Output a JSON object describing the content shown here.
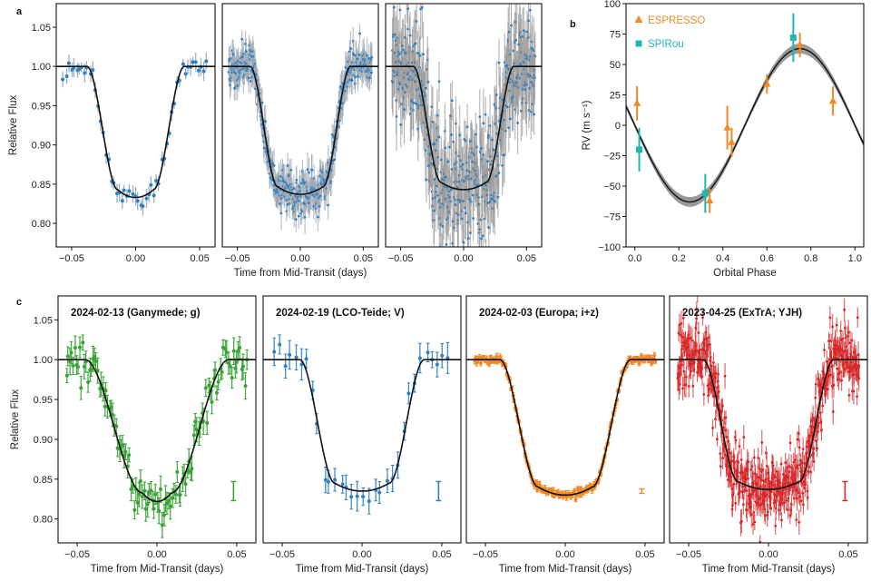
{
  "panel_labels": {
    "a": "a",
    "b": "b",
    "c": "c"
  },
  "chart_data": [
    {
      "id": "a1",
      "type": "scatter",
      "panel": "a",
      "xlabel": "",
      "ylabel": "Relative Flux",
      "xlim": [
        -0.062,
        0.062
      ],
      "ylim": [
        0.77,
        1.08
      ],
      "xticks": [
        {
          "v": -0.05,
          "label": "−0.05"
        },
        {
          "v": 0.0,
          "label": "0.00"
        },
        {
          "v": 0.05,
          "label": "0.05"
        }
      ],
      "yticks": [
        {
          "v": 0.8,
          "label": "0.80"
        },
        {
          "v": 0.85,
          "label": "0.85"
        },
        {
          "v": 0.9,
          "label": "0.90"
        },
        {
          "v": 0.95,
          "label": "0.95"
        },
        {
          "v": 1.0,
          "label": "1.00"
        },
        {
          "v": 1.05,
          "label": "1.05"
        }
      ],
      "model": {
        "depth": 0.167,
        "t_half": 0.026,
        "t_ingress": 0.012,
        "baseline": 1.0
      },
      "point_color": "#2f7fc1",
      "errbar_color": "#8fa8bf",
      "n_points": 55,
      "scatter": 0.006,
      "err": 0.009
    },
    {
      "id": "a2",
      "type": "scatter",
      "panel": "a",
      "xlabel": "Time from Mid-Transit (days)",
      "ylabel": "",
      "xlim": [
        -0.062,
        0.062
      ],
      "ylim": [
        0.77,
        1.08
      ],
      "xticks": [
        {
          "v": -0.05,
          "label": "−0.05"
        },
        {
          "v": 0.0,
          "label": "0.00"
        },
        {
          "v": 0.05,
          "label": "0.05"
        }
      ],
      "yticks": [],
      "model": {
        "depth": 0.163,
        "t_half": 0.029,
        "t_ingress": 0.011,
        "baseline": 1.0
      },
      "point_color": "#2f7fc1",
      "errbar_color": "#9aa6b2",
      "n_points": 420,
      "scatter": 0.012,
      "err": 0.016
    },
    {
      "id": "a3",
      "type": "scatter",
      "panel": "a",
      "xlabel": "",
      "ylabel": "",
      "xlim": [
        -0.062,
        0.062
      ],
      "ylim": [
        0.77,
        1.08
      ],
      "xticks": [
        {
          "v": -0.05,
          "label": "−0.05"
        },
        {
          "v": 0.0,
          "label": "0.00"
        },
        {
          "v": 0.05,
          "label": "0.05"
        }
      ],
      "yticks": [],
      "model": {
        "depth": 0.157,
        "t_half": 0.029,
        "t_ingress": 0.011,
        "baseline": 1.0
      },
      "point_color": "#2f7fc1",
      "errbar_color": "#9a9a9a",
      "n_points": 480,
      "scatter": 0.035,
      "err": 0.032
    },
    {
      "id": "b",
      "type": "scatter",
      "panel": "b",
      "xlabel": "Orbital Phase",
      "ylabel": "RV (m s⁻¹)",
      "xlim": [
        -0.04,
        1.04
      ],
      "ylim": [
        -100,
        100
      ],
      "xticks": [
        {
          "v": 0.0,
          "label": "0.0"
        },
        {
          "v": 0.2,
          "label": "0.2"
        },
        {
          "v": 0.4,
          "label": "0.4"
        },
        {
          "v": 0.6,
          "label": "0.6"
        },
        {
          "v": 0.8,
          "label": "0.8"
        },
        {
          "v": 1.0,
          "label": "1.0"
        }
      ],
      "yticks": [
        {
          "v": -100,
          "label": "−100"
        },
        {
          "v": -75,
          "label": "−75"
        },
        {
          "v": -50,
          "label": "−50"
        },
        {
          "v": -25,
          "label": "−25"
        },
        {
          "v": 0,
          "label": "0"
        },
        {
          "v": 25,
          "label": "25"
        },
        {
          "v": 50,
          "label": "50"
        },
        {
          "v": 75,
          "label": "75"
        },
        {
          "v": 100,
          "label": "100"
        }
      ],
      "model": {
        "K": 63,
        "phase_min": 0.25,
        "band": 4
      },
      "legend_position": "top-left",
      "series": [
        {
          "name": "ESPRESSO",
          "color": "#f08a24",
          "marker": "triangle",
          "points": [
            [
              0.01,
              18,
              14
            ],
            [
              0.34,
              -62,
              10
            ],
            [
              0.42,
              -2,
              18
            ],
            [
              0.44,
              -14,
              12
            ],
            [
              0.6,
              34,
              8
            ],
            [
              0.75,
              66,
              10
            ],
            [
              0.9,
              20,
              12
            ]
          ]
        },
        {
          "name": "SPIRou",
          "color": "#1fb5b5",
          "marker": "square",
          "points": [
            [
              0.02,
              -20,
              18
            ],
            [
              0.32,
              -56,
              16
            ],
            [
              0.72,
              72,
              20
            ]
          ]
        }
      ]
    },
    {
      "id": "c1",
      "type": "scatter",
      "panel": "c",
      "title": "2024-02-13  (Ganymede; g)",
      "xlabel": "Time from Mid-Transit (days)",
      "ylabel": "Relative Flux",
      "xlim": [
        -0.062,
        0.062
      ],
      "ylim": [
        0.77,
        1.08
      ],
      "xticks": [
        {
          "v": -0.05,
          "label": "−0.05"
        },
        {
          "v": 0.0,
          "label": "0.00"
        },
        {
          "v": 0.05,
          "label": "0.05"
        }
      ],
      "yticks": [
        {
          "v": 0.8,
          "label": "0.80"
        },
        {
          "v": 0.85,
          "label": "0.85"
        },
        {
          "v": 0.9,
          "label": "0.90"
        },
        {
          "v": 0.95,
          "label": "0.95"
        },
        {
          "v": 1.0,
          "label": "1.00"
        },
        {
          "v": 1.05,
          "label": "1.05"
        }
      ],
      "model": {
        "depth": 0.178,
        "t_half": 0.027,
        "t_ingress": 0.018,
        "baseline": 1.0
      },
      "point_color": "#3aa335",
      "errbar_color": "#3aa335",
      "n_points": 110,
      "scatter": 0.014,
      "err": 0.012,
      "typical_error": 0.012
    },
    {
      "id": "c2",
      "type": "scatter",
      "panel": "c",
      "title": "2024-02-19  (LCO-Teide; V)",
      "xlabel": "Time from Mid-Transit (days)",
      "ylabel": "",
      "xlim": [
        -0.062,
        0.062
      ],
      "ylim": [
        0.77,
        1.08
      ],
      "xticks": [
        {
          "v": -0.05,
          "label": "−0.05"
        },
        {
          "v": 0.0,
          "label": "0.00"
        },
        {
          "v": 0.05,
          "label": "0.05"
        }
      ],
      "yticks": [],
      "model": {
        "depth": 0.165,
        "t_half": 0.028,
        "t_ingress": 0.011,
        "baseline": 1.0
      },
      "point_color": "#2f7fc1",
      "errbar_color": "#2f7fc1",
      "n_points": 32,
      "scatter": 0.012,
      "err": 0.014,
      "typical_error": 0.012
    },
    {
      "id": "c3",
      "type": "scatter",
      "panel": "c",
      "title": "2024-02-03  (Europa; i+z)",
      "xlabel": "Time from Mid-Transit (days)",
      "ylabel": "",
      "xlim": [
        -0.062,
        0.062
      ],
      "ylim": [
        0.77,
        1.08
      ],
      "xticks": [
        {
          "v": -0.05,
          "label": "−0.05"
        },
        {
          "v": 0.0,
          "label": "0.00"
        },
        {
          "v": 0.05,
          "label": "0.05"
        }
      ],
      "yticks": [],
      "model": {
        "depth": 0.17,
        "t_half": 0.029,
        "t_ingress": 0.012,
        "baseline": 1.0
      },
      "point_color": "#f08a24",
      "errbar_color": "#f08a24",
      "n_points": 180,
      "scatter": 0.0025,
      "err": 0.003,
      "typical_error": 0.002
    },
    {
      "id": "c4",
      "type": "scatter",
      "panel": "c",
      "title": "2023-04-25  (ExTrA; YJH)",
      "xlabel": "Time from Mid-Transit (days)",
      "ylabel": "",
      "xlim": [
        -0.062,
        0.062
      ],
      "ylim": [
        0.77,
        1.08
      ],
      "xticks": [
        {
          "v": -0.05,
          "label": "−0.05"
        },
        {
          "v": 0.0,
          "label": "0.00"
        },
        {
          "v": 0.05,
          "label": "0.05"
        }
      ],
      "yticks": [],
      "model": {
        "depth": 0.163,
        "t_half": 0.03,
        "t_ingress": 0.011,
        "baseline": 1.0
      },
      "point_color": "#d62728",
      "errbar_color": "#d62728",
      "n_points": 600,
      "scatter": 0.022,
      "err": 0.012,
      "typical_error": 0.012
    }
  ]
}
